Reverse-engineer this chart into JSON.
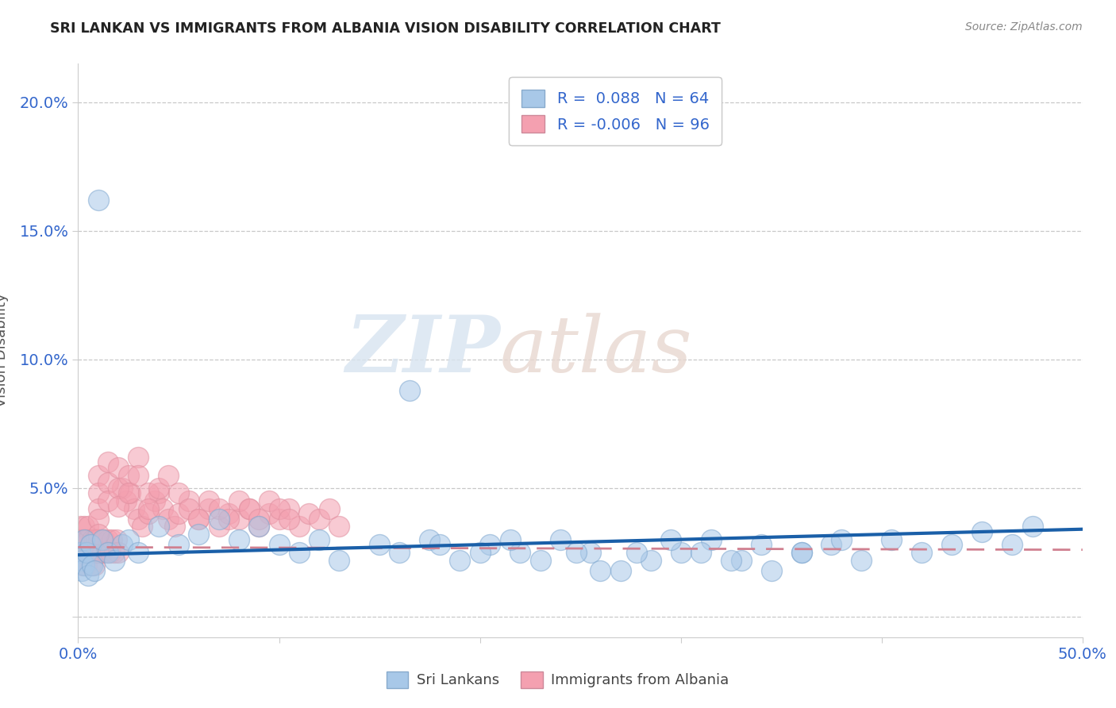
{
  "title": "SRI LANKAN VS IMMIGRANTS FROM ALBANIA VISION DISABILITY CORRELATION CHART",
  "source": "Source: ZipAtlas.com",
  "ylabel": "Vision Disability",
  "xlim": [
    0.0,
    0.5
  ],
  "ylim": [
    -0.008,
    0.215
  ],
  "xticks": [
    0.0,
    0.1,
    0.2,
    0.3,
    0.4,
    0.5
  ],
  "xticklabels": [
    "0.0%",
    "",
    "",
    "",
    "",
    "50.0%"
  ],
  "yticks": [
    0.0,
    0.05,
    0.1,
    0.15,
    0.2
  ],
  "yticklabels": [
    "",
    "5.0%",
    "10.0%",
    "15.0%",
    "20.0%"
  ],
  "sri_lankans_R": 0.088,
  "sri_lankans_N": 64,
  "albania_R": -0.006,
  "albania_N": 96,
  "blue_color": "#a8c8e8",
  "pink_color": "#f4a0b0",
  "trend_blue": "#1a5fa8",
  "trend_pink": "#d08090",
  "watermark_zip": "ZIP",
  "watermark_atlas": "atlas",
  "sri_lankans_x": [
    0.001,
    0.002,
    0.002,
    0.003,
    0.003,
    0.004,
    0.005,
    0.006,
    0.007,
    0.008,
    0.01,
    0.012,
    0.015,
    0.018,
    0.022,
    0.025,
    0.03,
    0.04,
    0.05,
    0.06,
    0.07,
    0.08,
    0.09,
    0.1,
    0.11,
    0.12,
    0.13,
    0.15,
    0.16,
    0.175,
    0.19,
    0.205,
    0.22,
    0.24,
    0.255,
    0.27,
    0.285,
    0.3,
    0.315,
    0.33,
    0.345,
    0.36,
    0.375,
    0.39,
    0.405,
    0.42,
    0.435,
    0.45,
    0.465,
    0.475,
    0.165,
    0.18,
    0.2,
    0.215,
    0.23,
    0.248,
    0.26,
    0.278,
    0.295,
    0.31,
    0.325,
    0.34,
    0.36,
    0.38
  ],
  "sri_lankans_y": [
    0.025,
    0.022,
    0.018,
    0.03,
    0.02,
    0.025,
    0.016,
    0.028,
    0.02,
    0.018,
    0.162,
    0.03,
    0.025,
    0.022,
    0.028,
    0.03,
    0.025,
    0.035,
    0.028,
    0.032,
    0.038,
    0.03,
    0.035,
    0.028,
    0.025,
    0.03,
    0.022,
    0.028,
    0.025,
    0.03,
    0.022,
    0.028,
    0.025,
    0.03,
    0.025,
    0.018,
    0.022,
    0.025,
    0.03,
    0.022,
    0.018,
    0.025,
    0.028,
    0.022,
    0.03,
    0.025,
    0.028,
    0.033,
    0.028,
    0.035,
    0.088,
    0.028,
    0.025,
    0.03,
    0.022,
    0.025,
    0.018,
    0.025,
    0.03,
    0.025,
    0.022,
    0.028,
    0.025,
    0.03
  ],
  "albania_x": [
    0.001,
    0.001,
    0.001,
    0.002,
    0.002,
    0.002,
    0.003,
    0.003,
    0.003,
    0.004,
    0.004,
    0.004,
    0.005,
    0.005,
    0.005,
    0.006,
    0.006,
    0.007,
    0.007,
    0.008,
    0.008,
    0.009,
    0.009,
    0.01,
    0.01,
    0.011,
    0.012,
    0.012,
    0.013,
    0.014,
    0.015,
    0.016,
    0.017,
    0.018,
    0.019,
    0.02,
    0.022,
    0.024,
    0.026,
    0.028,
    0.03,
    0.032,
    0.035,
    0.038,
    0.04,
    0.042,
    0.045,
    0.048,
    0.05,
    0.055,
    0.06,
    0.065,
    0.07,
    0.075,
    0.08,
    0.085,
    0.09,
    0.095,
    0.1,
    0.105,
    0.11,
    0.115,
    0.12,
    0.125,
    0.13,
    0.01,
    0.01,
    0.01,
    0.01,
    0.01,
    0.015,
    0.015,
    0.015,
    0.02,
    0.02,
    0.02,
    0.025,
    0.025,
    0.03,
    0.03,
    0.035,
    0.035,
    0.04,
    0.045,
    0.05,
    0.055,
    0.06,
    0.065,
    0.07,
    0.075,
    0.08,
    0.085,
    0.09,
    0.095,
    0.1,
    0.105
  ],
  "albania_y": [
    0.025,
    0.03,
    0.035,
    0.02,
    0.025,
    0.03,
    0.025,
    0.03,
    0.035,
    0.02,
    0.025,
    0.03,
    0.025,
    0.03,
    0.035,
    0.02,
    0.025,
    0.03,
    0.025,
    0.02,
    0.03,
    0.025,
    0.03,
    0.025,
    0.03,
    0.025,
    0.03,
    0.025,
    0.03,
    0.025,
    0.03,
    0.025,
    0.03,
    0.025,
    0.03,
    0.025,
    0.05,
    0.045,
    0.048,
    0.042,
    0.038,
    0.035,
    0.04,
    0.045,
    0.048,
    0.042,
    0.038,
    0.035,
    0.04,
    0.045,
    0.038,
    0.042,
    0.035,
    0.04,
    0.038,
    0.042,
    0.035,
    0.04,
    0.038,
    0.042,
    0.035,
    0.04,
    0.038,
    0.042,
    0.035,
    0.055,
    0.048,
    0.042,
    0.038,
    0.032,
    0.06,
    0.052,
    0.045,
    0.058,
    0.05,
    0.043,
    0.055,
    0.048,
    0.062,
    0.055,
    0.048,
    0.042,
    0.05,
    0.055,
    0.048,
    0.042,
    0.038,
    0.045,
    0.042,
    0.038,
    0.045,
    0.042,
    0.038,
    0.045,
    0.042,
    0.038
  ]
}
